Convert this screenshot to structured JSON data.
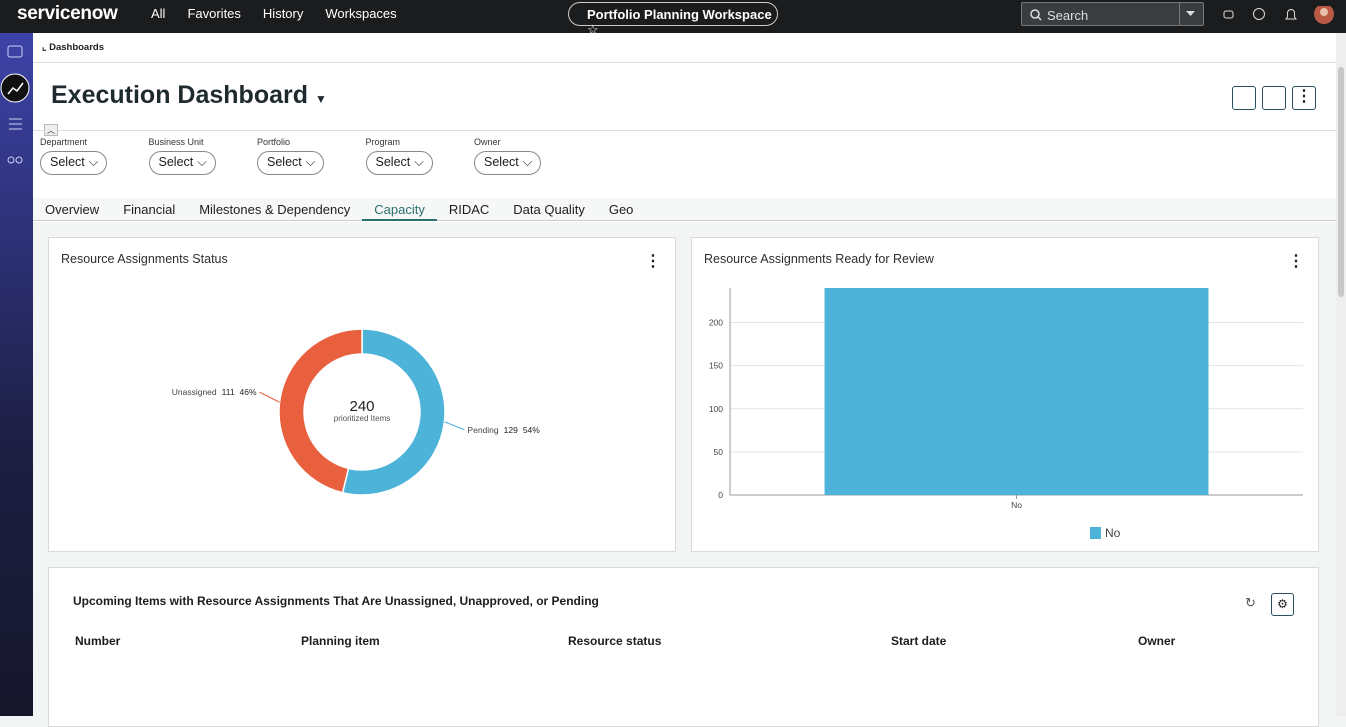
{
  "nav": {
    "brand": "servicenow",
    "menu": [
      "All",
      "Favorites",
      "History",
      "Workspaces"
    ],
    "workspace": "Portfolio Planning Workspace",
    "search": "Search"
  },
  "breadcrumb": "Dashboards",
  "dashboard": {
    "title": "Execution Dashboard",
    "filters": [
      {
        "label": "Department",
        "value": "Select"
      },
      {
        "label": "Business Unit",
        "value": "Select"
      },
      {
        "label": "Portfolio",
        "value": "Select"
      },
      {
        "label": "Program",
        "value": "Select"
      },
      {
        "label": "Owner",
        "value": "Select"
      }
    ],
    "tabs": [
      "Overview",
      "Financial",
      "Milestones & Dependency",
      "Capacity",
      "RIDAC",
      "Data Quality",
      "Geo"
    ],
    "active_tab": 3
  },
  "chart_data": [
    {
      "type": "donut",
      "title": "Resource Assignments Status",
      "total": 240,
      "center_label": "prioritized Items",
      "categories": [
        "Unassigned",
        "Pending"
      ],
      "values": [
        111,
        129
      ],
      "percent_labels": [
        "46%",
        "54%"
      ],
      "colors": [
        "#e9603e",
        "#4eb3d8"
      ]
    },
    {
      "type": "bar",
      "title": "Resource Assignments Ready for Review",
      "categories": [
        "No"
      ],
      "series": [
        {
          "name": "No",
          "color": "#4eb3d8",
          "values": [
            240
          ]
        }
      ],
      "ylim": [
        0,
        240
      ],
      "yticks": [
        0,
        50,
        100,
        150,
        200
      ],
      "grid": true,
      "legend": "bottom"
    }
  ],
  "list": {
    "title": "Upcoming Items with Resource Assignments That Are Unassigned, Unapproved, or Pending",
    "columns": [
      "Number",
      "Planning item",
      "Resource status",
      "Start date",
      "Owner"
    ]
  }
}
